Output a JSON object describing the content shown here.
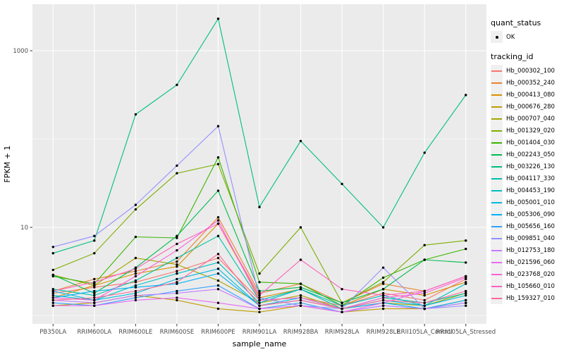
{
  "colors": {
    "panel_bg": "#EBEBEB",
    "grid": "#FFFFFF",
    "axis_text": "#4D4D4D",
    "tick_mark": "#333333",
    "point": "#000000",
    "page_bg": "#FFFFFF",
    "legend_key_bg": "#F0F0F0"
  },
  "chart_data": {
    "type": "line",
    "title": "",
    "xlabel": "sample_name",
    "ylabel": "FPKM + 1",
    "y_scale": "log10",
    "grid": true,
    "legend_position": "right",
    "y_ticks": [
      {
        "value": 1000,
        "label": "1000"
      },
      {
        "value": 10,
        "label": "10"
      }
    ],
    "y_minor_breaks": [
      1,
      100
    ],
    "ylim_log10": [
      -0.09,
      3.53
    ],
    "categories": [
      "PB350LA",
      "RRIM600LA",
      "RRIM600LE",
      "RRIM600SE",
      "RRIM600PE",
      "RRIM901LA",
      "RRIM928BA",
      "RRIM928LA",
      "RRIM928LE",
      "RRII105LA_Control",
      "RRII105LA_Stressed"
    ],
    "legend": {
      "quant_status": {
        "title": "quant_status",
        "items": [
          {
            "label": "OK",
            "marker": "point"
          }
        ]
      },
      "tracking_id": {
        "title": "tracking_id"
      }
    },
    "series": [
      {
        "name": "Hb_000302_100",
        "color": "#F8766D",
        "values": [
          1.8,
          2.1,
          2.4,
          3.2,
          4.5,
          1.5,
          1.6,
          1.3,
          1.8,
          1.5,
          2.6
        ]
      },
      {
        "name": "Hb_000352_240",
        "color": "#EA8331",
        "values": [
          1.9,
          2.6,
          3.2,
          4.1,
          13,
          1.8,
          2.3,
          1.4,
          2.3,
          1.9,
          2.8
        ]
      },
      {
        "name": "Hb_000413_080",
        "color": "#D89000",
        "values": [
          1.6,
          2.2,
          3.0,
          3.6,
          11,
          1.6,
          2.0,
          1.3,
          2.0,
          1.7,
          2.4
        ]
      },
      {
        "name": "Hb_000676_280",
        "color": "#C09B00",
        "values": [
          1.3,
          1.4,
          1.7,
          1.5,
          1.2,
          1.1,
          1.3,
          1.1,
          1.2,
          1.2,
          1.5
        ]
      },
      {
        "name": "Hb_000707_040",
        "color": "#A3A500",
        "values": [
          2.9,
          2.2,
          4.5,
          3.8,
          2.5,
          1.4,
          1.7,
          1.2,
          1.4,
          1.3,
          1.8
        ]
      },
      {
        "name": "Hb_001329_020",
        "color": "#7CAE00",
        "values": [
          3.3,
          5.1,
          16,
          41,
          52,
          3.0,
          10,
          1.4,
          2.4,
          6.3,
          7.1
        ]
      },
      {
        "name": "Hb_001404_030",
        "color": "#39B600",
        "values": [
          2.8,
          2.3,
          7.8,
          7.6,
          62,
          2.4,
          2.3,
          1.3,
          2.7,
          4.3,
          5.7
        ]
      },
      {
        "name": "Hb_002243_050",
        "color": "#00BB4E",
        "values": [
          2.9,
          1.8,
          3.5,
          8.0,
          26,
          1.9,
          2.1,
          1.4,
          2.0,
          4.3,
          4.0
        ]
      },
      {
        "name": "Hb_003226_130",
        "color": "#00BF7D",
        "values": [
          5.1,
          7.1,
          190,
          410,
          2300,
          17,
          95,
          31,
          10,
          70,
          315
        ]
      },
      {
        "name": "Hb_004117_330",
        "color": "#00C1A3",
        "values": [
          2.0,
          1.7,
          2.5,
          4.5,
          8.0,
          1.5,
          2.0,
          1.2,
          1.6,
          1.4,
          1.8
        ]
      },
      {
        "name": "Hb_004453_190",
        "color": "#00BFC4",
        "values": [
          1.7,
          1.5,
          2.2,
          3.0,
          4.0,
          1.4,
          2.0,
          1.3,
          1.7,
          1.3,
          2.3
        ]
      },
      {
        "name": "Hb_005001_010",
        "color": "#00BAE0",
        "values": [
          1.9,
          1.5,
          1.8,
          2.6,
          3.4,
          1.3,
          1.6,
          1.2,
          1.5,
          1.3,
          1.7
        ]
      },
      {
        "name": "Hb_005306_090",
        "color": "#00B0F6",
        "values": [
          1.6,
          1.9,
          2.1,
          2.3,
          3.0,
          1.3,
          1.5,
          1.2,
          1.4,
          1.2,
          1.5
        ]
      },
      {
        "name": "Hb_005656_160",
        "color": "#35A2FF",
        "values": [
          1.4,
          1.3,
          1.6,
          1.9,
          2.2,
          1.2,
          1.4,
          1.1,
          1.3,
          1.2,
          1.4
        ]
      },
      {
        "name": "Hb_009851_040",
        "color": "#9590FF",
        "values": [
          6.0,
          8.0,
          18,
          50,
          140,
          1.6,
          1.3,
          1.2,
          3.5,
          1.2,
          1.3
        ]
      },
      {
        "name": "Hb_012753_180",
        "color": "#C77CFF",
        "values": [
          1.5,
          1.4,
          1.7,
          1.8,
          2.0,
          1.2,
          1.3,
          1.1,
          1.3,
          1.2,
          1.4
        ]
      },
      {
        "name": "Hb_021596_060",
        "color": "#E76BF3",
        "values": [
          1.3,
          1.3,
          1.5,
          1.6,
          1.4,
          1.2,
          1.3,
          1.1,
          1.4,
          1.9,
          2.8
        ]
      },
      {
        "name": "Hb_023768_020",
        "color": "#FA62DB",
        "values": [
          1.6,
          1.5,
          2.8,
          5.5,
          12,
          1.5,
          1.6,
          1.2,
          1.6,
          1.8,
          2.7
        ]
      },
      {
        "name": "Hb_105660_010",
        "color": "#FF62BC",
        "values": [
          1.9,
          2.4,
          3.4,
          6.5,
          11,
          1.7,
          4.3,
          2.0,
          1.7,
          1.9,
          2.8
        ]
      },
      {
        "name": "Hb_159327_010",
        "color": "#FF6A98",
        "values": [
          1.5,
          1.6,
          1.9,
          2.4,
          5.0,
          1.3,
          1.5,
          1.2,
          1.5,
          1.4,
          1.9
        ]
      }
    ]
  }
}
